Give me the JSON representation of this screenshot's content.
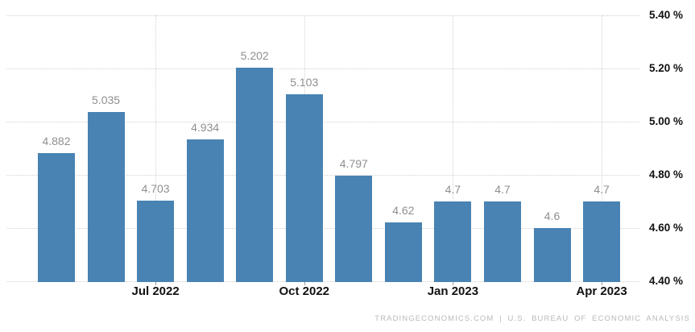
{
  "attribution": "TRADINGECONOMICS.COM | U.S. BUREAU OF ECONOMIC ANALYSIS",
  "chart_data": {
    "type": "bar",
    "title": "",
    "values": [
      4.882,
      5.035,
      4.703,
      4.934,
      5.202,
      5.103,
      4.797,
      4.62,
      4.7,
      4.7,
      4.6,
      4.7
    ],
    "value_labels": [
      "4.882",
      "5.035",
      "4.703",
      "4.934",
      "5.202",
      "5.103",
      "4.797",
      "4.62",
      "4.7",
      "4.7",
      "4.6",
      "4.7"
    ],
    "x_ticks": [
      {
        "label": "Jul 2022",
        "bar_index": 2
      },
      {
        "label": "Oct 2022",
        "bar_index": 5
      },
      {
        "label": "Jan 2023",
        "bar_index": 8
      },
      {
        "label": "Apr 2023",
        "bar_index": 11
      }
    ],
    "y_ticks": [
      {
        "label": "5.40 %",
        "value": 5.4
      },
      {
        "label": "5.20 %",
        "value": 5.2
      },
      {
        "label": "5.00 %",
        "value": 5.0
      },
      {
        "label": "4.80 %",
        "value": 4.8
      },
      {
        "label": "4.60 %",
        "value": 4.6
      },
      {
        "label": "4.40 %",
        "value": 4.4
      }
    ],
    "ylim": [
      4.4,
      5.4
    ],
    "y_axis_position": "right",
    "grid": "dotted",
    "colors": {
      "bar": "#4883b3",
      "value_label": "#8f8f8f",
      "axis_label": "#111111",
      "gridline": "#d2d2d2",
      "tick_mark": "#9a9a9a",
      "attribution": "#b9b9b9"
    }
  }
}
